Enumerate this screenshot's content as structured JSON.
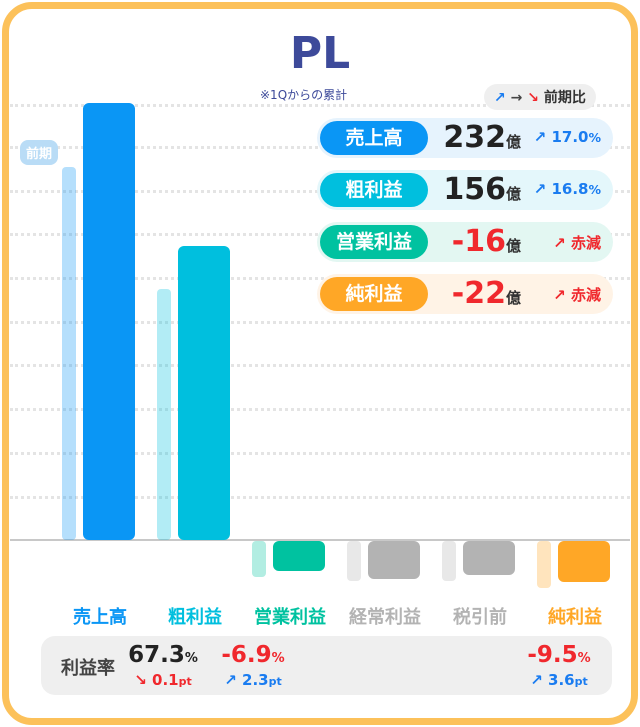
{
  "title": "PL",
  "subtitle": "※1Qからの累計",
  "prev_label": "前期",
  "legend": {
    "up": "↗",
    "flat": "→",
    "down": "↘",
    "label": "前期比"
  },
  "colors": {
    "sales": "#0a96f5",
    "gross": "#00bfde",
    "operating": "#00c2a0",
    "ordinary": "#b3b3b3",
    "pretax": "#b3b3b3",
    "net": "#ffa726",
    "border": "#fcc15a",
    "positive": "#1a7cf0",
    "negative": "#f0282d"
  },
  "summary": [
    {
      "label": "売上高",
      "value": "232",
      "unit": "億",
      "change_icon": "↗",
      "change": "17.0",
      "change_unit": "%",
      "pill": "#0a96f5",
      "bg": "#e6f3fd",
      "vcolor": "#222",
      "ccolor": "#1a7cf0"
    },
    {
      "label": "粗利益",
      "value": "156",
      "unit": "億",
      "change_icon": "↗",
      "change": "16.8",
      "change_unit": "%",
      "pill": "#00bfde",
      "bg": "#e4f7fb",
      "vcolor": "#222",
      "ccolor": "#1a7cf0"
    },
    {
      "label": "営業利益",
      "value": "-16",
      "unit": "億",
      "change_icon": "↗",
      "change": "赤減",
      "change_unit": "",
      "pill": "#00c2a0",
      "bg": "#e3f7f2",
      "vcolor": "#f0282d",
      "ccolor": "#f0282d"
    },
    {
      "label": "純利益",
      "value": "-22",
      "unit": "億",
      "change_icon": "↗",
      "change": "赤減",
      "change_unit": "",
      "pill": "#ffa726",
      "bg": "#fff3e6",
      "vcolor": "#f0282d",
      "ccolor": "#f0282d"
    }
  ],
  "ratio": {
    "label": "利益率",
    "items": [
      {
        "value": "67.3",
        "unit": "%",
        "vcolor": "#222",
        "icon": "↘",
        "change": "0.1",
        "cunit": "pt",
        "ccolor": "#f0282d"
      },
      {
        "value": "-6.9",
        "unit": "%",
        "vcolor": "#f0282d",
        "icon": "↗",
        "change": "2.3",
        "cunit": "pt",
        "ccolor": "#1a7cf0"
      },
      {
        "value": "-9.5",
        "unit": "%",
        "vcolor": "#f0282d",
        "icon": "↗",
        "change": "3.6",
        "cunit": "pt",
        "ccolor": "#1a7cf0"
      }
    ]
  },
  "chart_data": {
    "type": "bar",
    "categories": [
      "売上高",
      "粗利益",
      "営業利益",
      "経常利益",
      "税引前",
      "純利益"
    ],
    "category_colors": [
      "#0a96f5",
      "#00bfde",
      "#00c2a0",
      "#b3b3b3",
      "#b3b3b3",
      "#ffa726"
    ],
    "series": [
      {
        "name": "前期",
        "values": [
          198,
          133,
          -19,
          -21,
          -21,
          -25
        ]
      },
      {
        "values": [
          232,
          156,
          -16,
          -20,
          -18,
          -22
        ]
      }
    ],
    "unit": "億",
    "grid": true
  }
}
